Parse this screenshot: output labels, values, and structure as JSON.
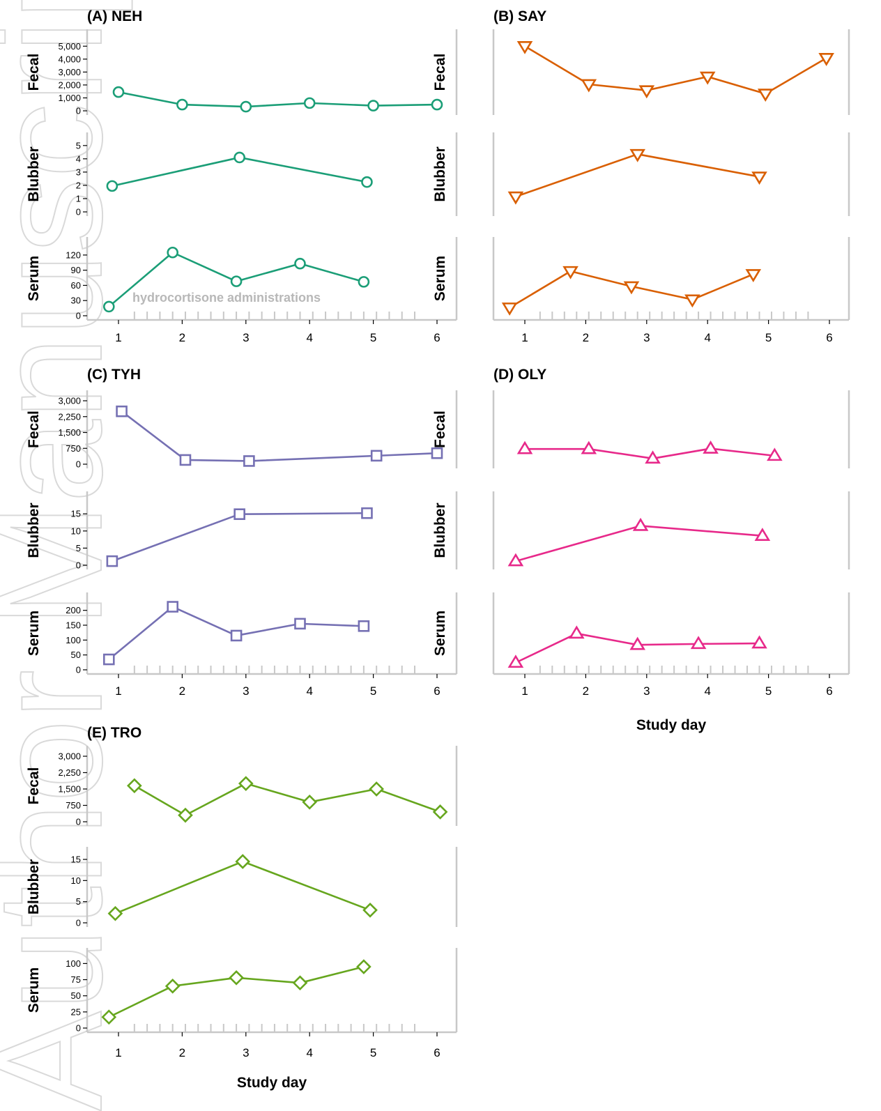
{
  "watermark": "Author Manuscript",
  "note": "hydrocortisone administrations",
  "chart_data": [
    {
      "type": "line",
      "title": "(A)  NEH",
      "color": "#1b9e77",
      "marker": "circle",
      "days": [
        1,
        2,
        3,
        4,
        5,
        6
      ],
      "xlabel": "",
      "rows": [
        {
          "label": "Fecal",
          "ylim": [
            0,
            5500
          ],
          "ticks": [
            0,
            1000,
            2000,
            3000,
            4000,
            5000
          ],
          "tick_labels": [
            "0",
            "1,000",
            "2,000",
            "3,000",
            "4,000",
            "5,000"
          ],
          "x": [
            1.0,
            2.0,
            3.0,
            4.0,
            5.0,
            6.0
          ],
          "y": [
            1450,
            480,
            320,
            600,
            400,
            480
          ]
        },
        {
          "label": "Blubber",
          "ylim": [
            0,
            5.2
          ],
          "ticks": [
            0,
            1,
            2,
            3,
            4,
            5
          ],
          "tick_labels": [
            "0",
            "1",
            "2",
            "3",
            "4",
            "5"
          ],
          "x": [
            0.9,
            2.9,
            4.9
          ],
          "y": [
            1.95,
            4.1,
            2.25
          ]
        },
        {
          "label": "Serum",
          "ylim": [
            0,
            135
          ],
          "ticks": [
            0,
            30,
            60,
            90,
            120
          ],
          "tick_labels": [
            "0",
            "30",
            "60",
            "90",
            "120"
          ],
          "x": [
            0.85,
            1.85,
            2.85,
            3.85,
            4.85
          ],
          "y": [
            18,
            125,
            68,
            103,
            67
          ]
        }
      ]
    },
    {
      "type": "line",
      "title": "(B)  SAY",
      "color": "#d95f02",
      "marker": "triangle-down",
      "days": [
        1,
        2,
        3,
        4,
        5,
        6
      ],
      "xlabel": "",
      "rows": [
        {
          "label": "Fecal",
          "ylim": [
            0,
            5500
          ],
          "ticks": [],
          "tick_labels": [],
          "x": [
            1.0,
            2.05,
            3.0,
            4.0,
            4.95,
            5.95
          ],
          "y": [
            5000,
            2050,
            1580,
            2640,
            1320,
            4080
          ]
        },
        {
          "label": "Blubber",
          "ylim": [
            0,
            5.2
          ],
          "ticks": [],
          "tick_labels": [],
          "x": [
            0.85,
            2.85,
            4.85
          ],
          "y": [
            1.15,
            4.35,
            2.65
          ]
        },
        {
          "label": "Serum",
          "ylim": [
            0,
            135
          ],
          "ticks": [],
          "tick_labels": [],
          "x": [
            0.75,
            1.75,
            2.75,
            3.75,
            4.75
          ],
          "y": [
            16,
            88,
            58,
            32,
            82
          ]
        }
      ]
    },
    {
      "type": "line",
      "title": "(C)  TYH",
      "color": "#7570b3",
      "marker": "square",
      "days": [
        1,
        2,
        3,
        4,
        5,
        6
      ],
      "xlabel": "",
      "rows": [
        {
          "label": "Fecal",
          "ylim": [
            0,
            3000
          ],
          "ticks": [
            0,
            750,
            1500,
            2250,
            3000
          ],
          "tick_labels": [
            "0",
            "750",
            "1,500",
            "2,250",
            "3,000"
          ],
          "x": [
            1.05,
            2.05,
            3.05,
            5.05,
            6.0
          ],
          "y": [
            2500,
            200,
            150,
            400,
            520
          ]
        },
        {
          "label": "Blubber",
          "ylim": [
            0,
            18.5
          ],
          "ticks": [
            0,
            5,
            10,
            15
          ],
          "tick_labels": [
            "0",
            "5",
            "10",
            "15"
          ],
          "x": [
            0.9,
            2.9,
            4.9
          ],
          "y": [
            1.2,
            14.9,
            15.2
          ]
        },
        {
          "label": "Serum",
          "ylim": [
            0,
            225
          ],
          "ticks": [
            0,
            50,
            100,
            150,
            200
          ],
          "tick_labels": [
            "0",
            "50",
            "100",
            "150",
            "200"
          ],
          "x": [
            0.85,
            1.85,
            2.85,
            3.85,
            4.85
          ],
          "y": [
            35,
            212,
            115,
            155,
            147
          ]
        }
      ]
    },
    {
      "type": "line",
      "title": "(D)  OLY",
      "color": "#e7298a",
      "marker": "triangle-up",
      "days": [
        1,
        2,
        3,
        4,
        5,
        6
      ],
      "xlabel": "Study day",
      "rows": [
        {
          "label": "Fecal",
          "ylim": [
            0,
            3000
          ],
          "ticks": [],
          "tick_labels": [],
          "x": [
            1.0,
            2.05,
            3.1,
            4.05,
            5.1
          ],
          "y": [
            720,
            720,
            270,
            740,
            400
          ]
        },
        {
          "label": "Blubber",
          "ylim": [
            0,
            18.5
          ],
          "ticks": [],
          "tick_labels": [],
          "x": [
            0.85,
            2.9,
            4.9
          ],
          "y": [
            1.2,
            11.5,
            8.6
          ]
        },
        {
          "label": "Serum",
          "ylim": [
            0,
            225
          ],
          "ticks": [],
          "tick_labels": [],
          "x": [
            0.85,
            1.85,
            2.85,
            3.85,
            4.85
          ],
          "y": [
            24,
            122,
            84,
            87,
            89
          ]
        }
      ]
    },
    {
      "type": "line",
      "title": "(E)  TRO",
      "color": "#66a61e",
      "marker": "diamond",
      "days": [
        1,
        2,
        3,
        4,
        5,
        6
      ],
      "xlabel": "Study day",
      "rows": [
        {
          "label": "Fecal",
          "ylim": [
            0,
            3000
          ],
          "ticks": [
            0,
            750,
            1500,
            2250,
            3000
          ],
          "tick_labels": [
            "0",
            "750",
            "1,500",
            "2,250",
            "3,000"
          ],
          "x": [
            1.25,
            2.05,
            3.0,
            4.0,
            5.05,
            6.05
          ],
          "y": [
            1650,
            300,
            1750,
            900,
            1500,
            450
          ]
        },
        {
          "label": "Blubber",
          "ylim": [
            0,
            15.5
          ],
          "ticks": [
            0,
            5,
            10,
            15
          ],
          "tick_labels": [
            "0",
            "5",
            "10",
            "15"
          ],
          "x": [
            0.95,
            2.95,
            4.95
          ],
          "y": [
            2.2,
            14.5,
            3.0
          ]
        },
        {
          "label": "Serum",
          "ylim": [
            0,
            108
          ],
          "ticks": [
            0,
            25,
            50,
            75,
            100
          ],
          "tick_labels": [
            "0",
            "25",
            "50",
            "75",
            "100"
          ],
          "x": [
            0.85,
            1.85,
            2.85,
            3.85,
            4.85
          ],
          "y": [
            17,
            65,
            78,
            70,
            95
          ]
        }
      ]
    }
  ]
}
